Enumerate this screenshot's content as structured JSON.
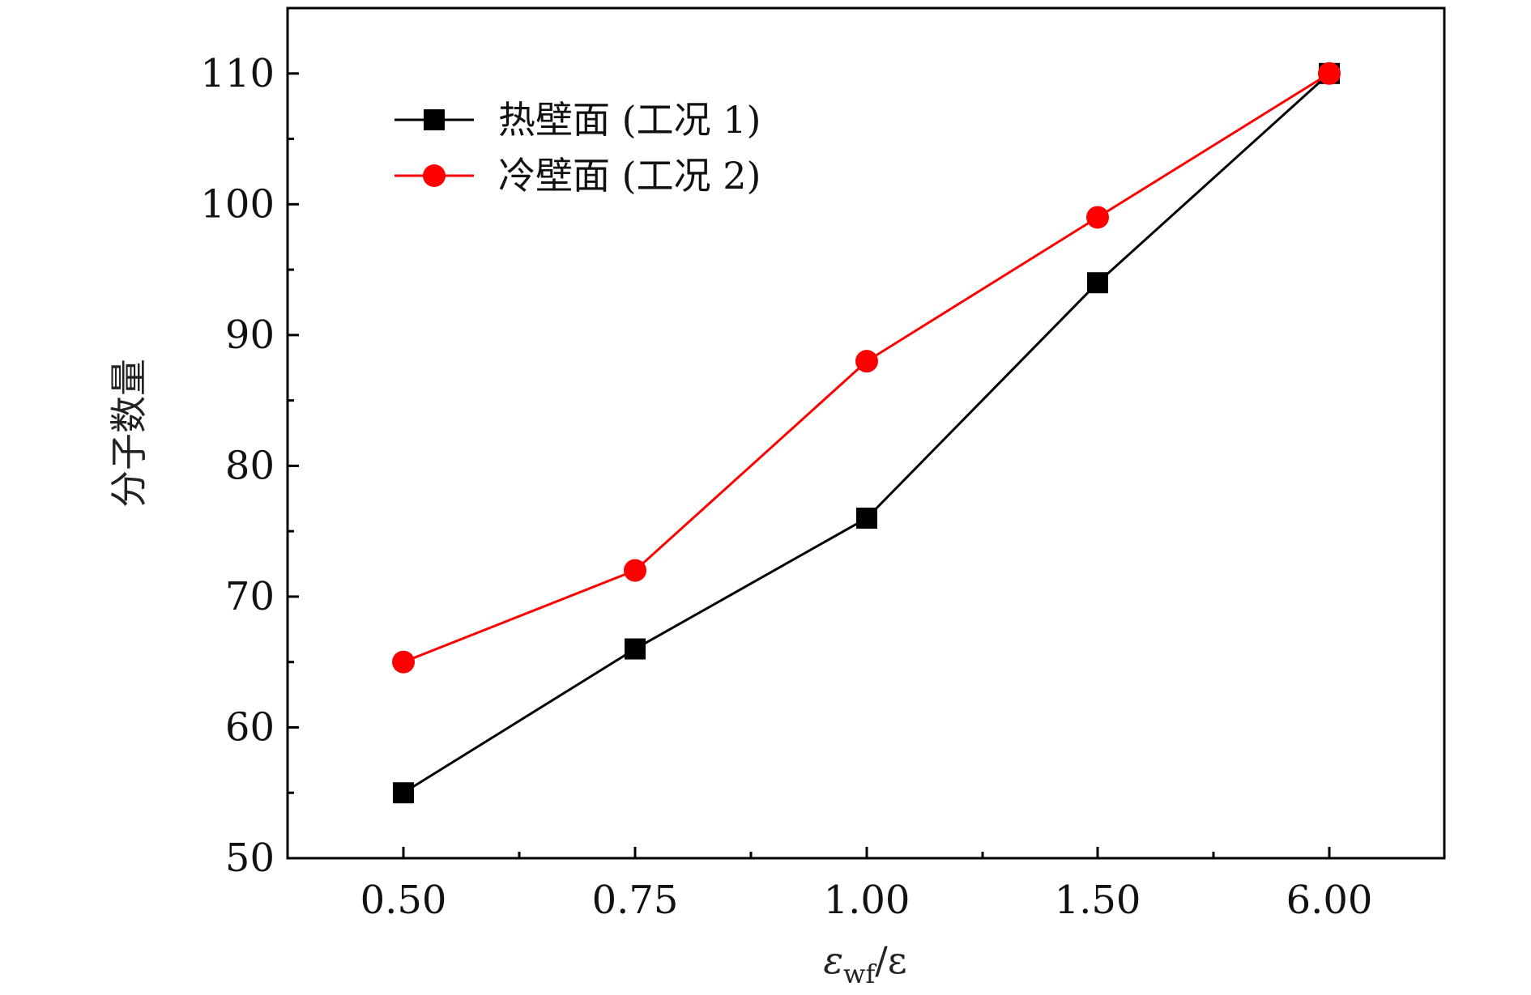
{
  "chart_data": {
    "type": "line",
    "categories": [
      "0.50",
      "0.75",
      "1.00",
      "1.50",
      "6.00"
    ],
    "xlabel": "εwf/ε",
    "xlabel_main": "ε",
    "xlabel_sub": "wf",
    "xlabel_tail": "/ε",
    "ylabel": "分子数量",
    "ylim": [
      50,
      115
    ],
    "yticks": [
      50,
      60,
      70,
      80,
      90,
      100,
      110
    ],
    "grid": false,
    "legend_position": "top-left",
    "series": [
      {
        "name": "热壁面 (工况 1)",
        "values": [
          55,
          66,
          76,
          94,
          110
        ],
        "color": "#000000",
        "marker": "square"
      },
      {
        "name": "冷壁面 (工况 2)",
        "values": [
          65,
          72,
          88,
          99,
          110
        ],
        "color": "#ff0000",
        "marker": "circle"
      }
    ]
  }
}
